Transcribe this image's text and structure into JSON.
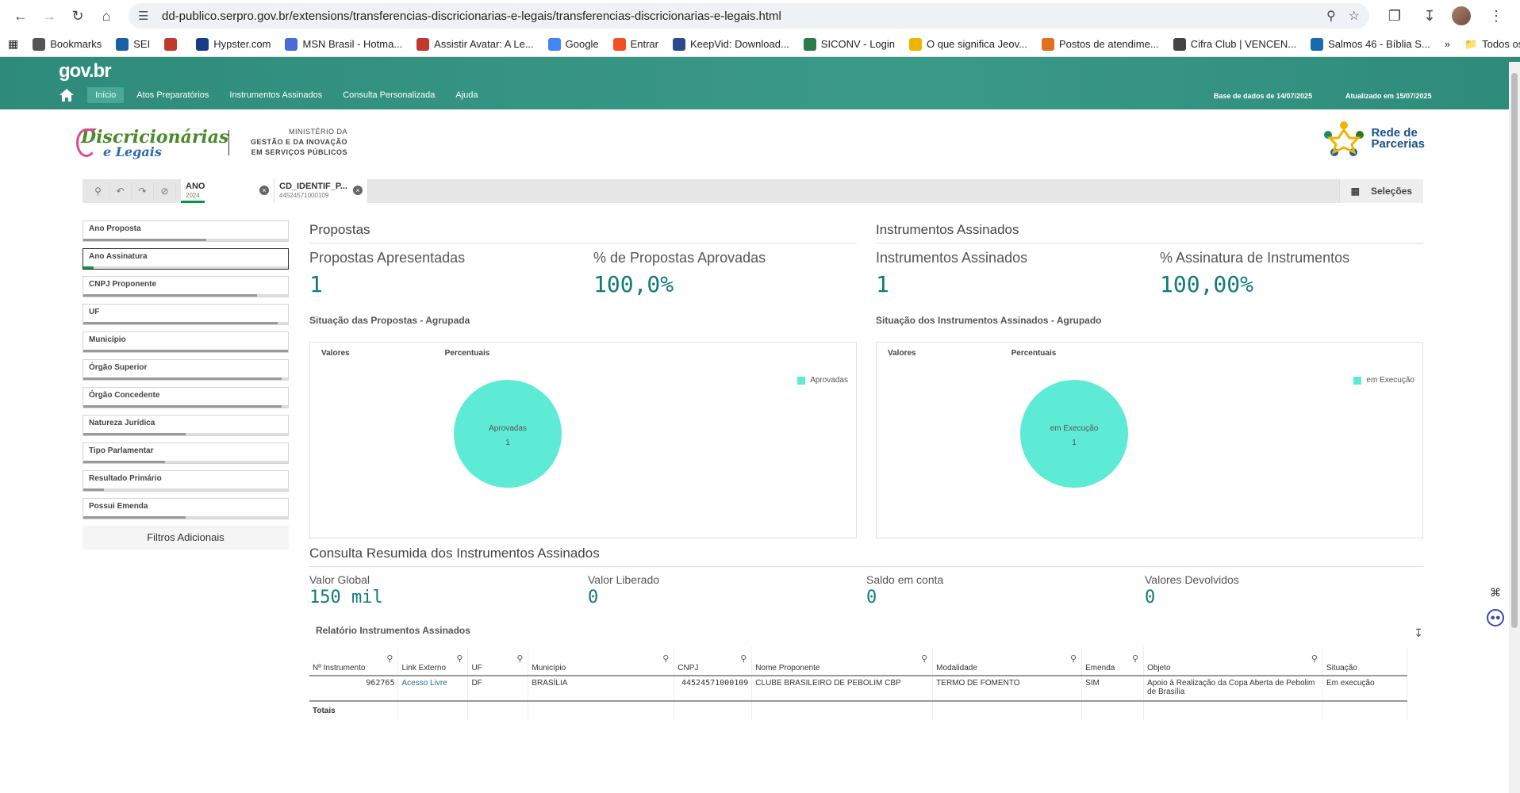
{
  "browser": {
    "url": "dd-publico.serpro.gov.br/extensions/transferencias-discricionarias-e-legais/transferencias-discricionarias-e-legais.html",
    "bookmarks": [
      {
        "label": "Bookmarks",
        "icon": "star-icon",
        "color": "#555555"
      },
      {
        "label": "SEI",
        "icon": "sei-icon",
        "color": "#1a5fa8"
      },
      {
        "label": "",
        "icon": "shield-icon",
        "color": "#c0392b"
      },
      {
        "label": "Hypster.com",
        "icon": "hypster-icon",
        "color": "#1a3a8a"
      },
      {
        "label": "MSN Brasil - Hotma...",
        "icon": "butterfly-icon",
        "color": "#4a6ad8"
      },
      {
        "label": "Assistir Avatar: A Le...",
        "icon": "play-icon",
        "color": "#c0392b"
      },
      {
        "label": "Google",
        "icon": "google-icon",
        "color": "#4285f4"
      },
      {
        "label": "Entrar",
        "icon": "windows-icon",
        "color": "#f25022"
      },
      {
        "label": "KeepVid: Download...",
        "icon": "keepvid-icon",
        "color": "#2a4a8a"
      },
      {
        "label": "SICONV - Login",
        "icon": "siconv-icon",
        "color": "#2a7a4a"
      },
      {
        "label": "O que significa Jeov...",
        "icon": "bulb-icon",
        "color": "#f0b400"
      },
      {
        "label": "Postos de atendime...",
        "icon": "globe-icon",
        "color": "#e07020"
      },
      {
        "label": "Cifra Club | VENCEN...",
        "icon": "guitar-icon",
        "color": "#444444"
      },
      {
        "label": "Salmos 46 - Bíblia S...",
        "icon": "cross-icon",
        "color": "#1a6ab0"
      }
    ],
    "all_favorites": "Todos os favoritos"
  },
  "site": {
    "brand": "gov.br",
    "nav": [
      "Início",
      "Atos Preparatórios",
      "Instrumentos Assinados",
      "Consulta Personalizada",
      "Ajuda"
    ],
    "base_info": "Base de dados de 14/07/2025",
    "updated_info": "Atualizado em 15/07/2025",
    "logo_line1": "Discricionárias",
    "logo_line2": "e Legais",
    "ministry_l1": "MINISTÉRIO DA",
    "ministry_l2": "GESTÃO E DA INOVAÇÃO",
    "ministry_l3": "EM SERVIÇOS PÚBLICOS",
    "rede_l1": "Rede de",
    "rede_l2": "Parcerias"
  },
  "selections": {
    "chips": [
      {
        "name": "ANO",
        "value": "2024"
      },
      {
        "name": "CD_IDENTIF_P...",
        "value": "44524571000109"
      }
    ],
    "label": "Seleções"
  },
  "filters": {
    "items": [
      {
        "label": "Ano Proposta",
        "fill": 0.6,
        "selected": 0
      },
      {
        "label": "Ano Assinatura",
        "fill": 0.05,
        "selected": 0.05,
        "active": true
      },
      {
        "label": "CNPJ Proponente",
        "fill": 0.85,
        "selected": 0
      },
      {
        "label": "UF",
        "fill": 0.95,
        "selected": 0
      },
      {
        "label": "Município",
        "fill": 1.0,
        "selected": 0
      },
      {
        "label": "Órgão Superior",
        "fill": 0.97,
        "selected": 0
      },
      {
        "label": "Órgão Concedente",
        "fill": 0.97,
        "selected": 0
      },
      {
        "label": "Natureza Jurídica",
        "fill": 0.5,
        "selected": 0
      },
      {
        "label": "Tipo Parlamentar",
        "fill": 0.4,
        "selected": 0
      },
      {
        "label": "Resultado Primário",
        "fill": 0.1,
        "selected": 0
      },
      {
        "label": "Possui Emenda",
        "fill": 0.5,
        "selected": 0
      }
    ],
    "more": "Filtros Adicionais"
  },
  "propostas": {
    "title": "Propostas",
    "kpi1_label": "Propostas Apresentadas",
    "kpi1_value": "1",
    "kpi2_label": "% de Propostas Aprovadas",
    "kpi2_value": "100,0%",
    "chart_title": "Situação das Propostas - Agrupada",
    "tab1": "Valores",
    "tab2": "Percentuais",
    "legend": "Aprovadas",
    "slice_label": "Aprovadas",
    "slice_value": "1"
  },
  "instrumentos": {
    "title": "Instrumentos Assinados",
    "kpi1_label": "Instrumentos Assinados",
    "kpi1_value": "1",
    "kpi2_label": "% Assinatura de Instrumentos",
    "kpi2_value": "100,00%",
    "chart_title": "Situação dos Instrumentos Assinados - Agrupado",
    "tab1": "Valores",
    "tab2": "Percentuais",
    "legend": "em Execução",
    "slice_label": "em Execução",
    "slice_value": "1"
  },
  "chart_data": [
    {
      "type": "pie",
      "title": "Situação das Propostas - Agrupada",
      "categories": [
        "Aprovadas"
      ],
      "values": [
        1
      ],
      "color": "#5eebd6",
      "legend": "top-right"
    },
    {
      "type": "pie",
      "title": "Situação dos Instrumentos Assinados - Agrupado",
      "categories": [
        "em Execução"
      ],
      "values": [
        1
      ],
      "color": "#5eebd6",
      "legend": "top-right"
    }
  ],
  "resumo": {
    "title": "Consulta Resumida dos Instrumentos Assinados",
    "items": [
      {
        "label": "Valor Global",
        "value": "150 mil"
      },
      {
        "label": "Valor Liberado",
        "value": "0"
      },
      {
        "label": "Saldo em conta",
        "value": "0"
      },
      {
        "label": "Valores Devolvidos",
        "value": "0"
      }
    ]
  },
  "tabela": {
    "title": "Relatório Instrumentos Assinados",
    "headers": [
      "Nº Instrumento",
      "Link Externo",
      "UF",
      "Município",
      "CNPJ",
      "Nome Proponente",
      "Modalidade",
      "Emenda",
      "Objeto",
      "Situação"
    ],
    "row": [
      "962765",
      "Acesso Livre",
      "DF",
      "BRASÍLIA",
      "44524571000109",
      "CLUBE BRASILEIRO DE PEBOLIM CBP",
      "TERMO DE FOMENTO",
      "SIM",
      "Apoio à Realização da Copa Aberta de Pebolim de Brasília",
      "Em execução"
    ],
    "totals": "Totais"
  }
}
